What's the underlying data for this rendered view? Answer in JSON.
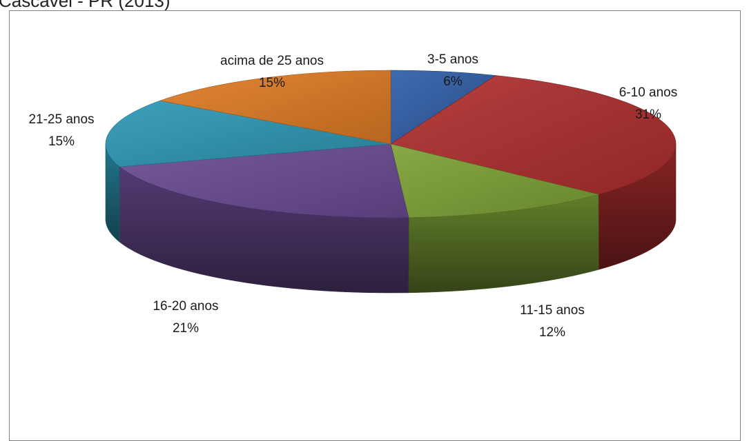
{
  "title": "Cascavel - PR (2013)",
  "chart_data": {
    "type": "pie",
    "title": "Cascavel - PR (2013)",
    "three_d": true,
    "legend": "none",
    "slices": [
      {
        "label": "3-5 anos",
        "value": 6,
        "percent_label": "6%",
        "color": "#2f5ea8"
      },
      {
        "label": "6-10 anos",
        "value": 31,
        "percent_label": "31%",
        "color": "#b02e2e"
      },
      {
        "label": "11-15 anos",
        "value": 12,
        "percent_label": "12%",
        "color": "#7ea236"
      },
      {
        "label": "16-20 anos",
        "value": 21,
        "percent_label": "21%",
        "color": "#6a4c93"
      },
      {
        "label": "21-25 anos",
        "value": 15,
        "percent_label": "15%",
        "color": "#2d98b6"
      },
      {
        "label": "acima de 25 anos",
        "value": 15,
        "percent_label": "15%",
        "color": "#e07b24"
      }
    ]
  }
}
